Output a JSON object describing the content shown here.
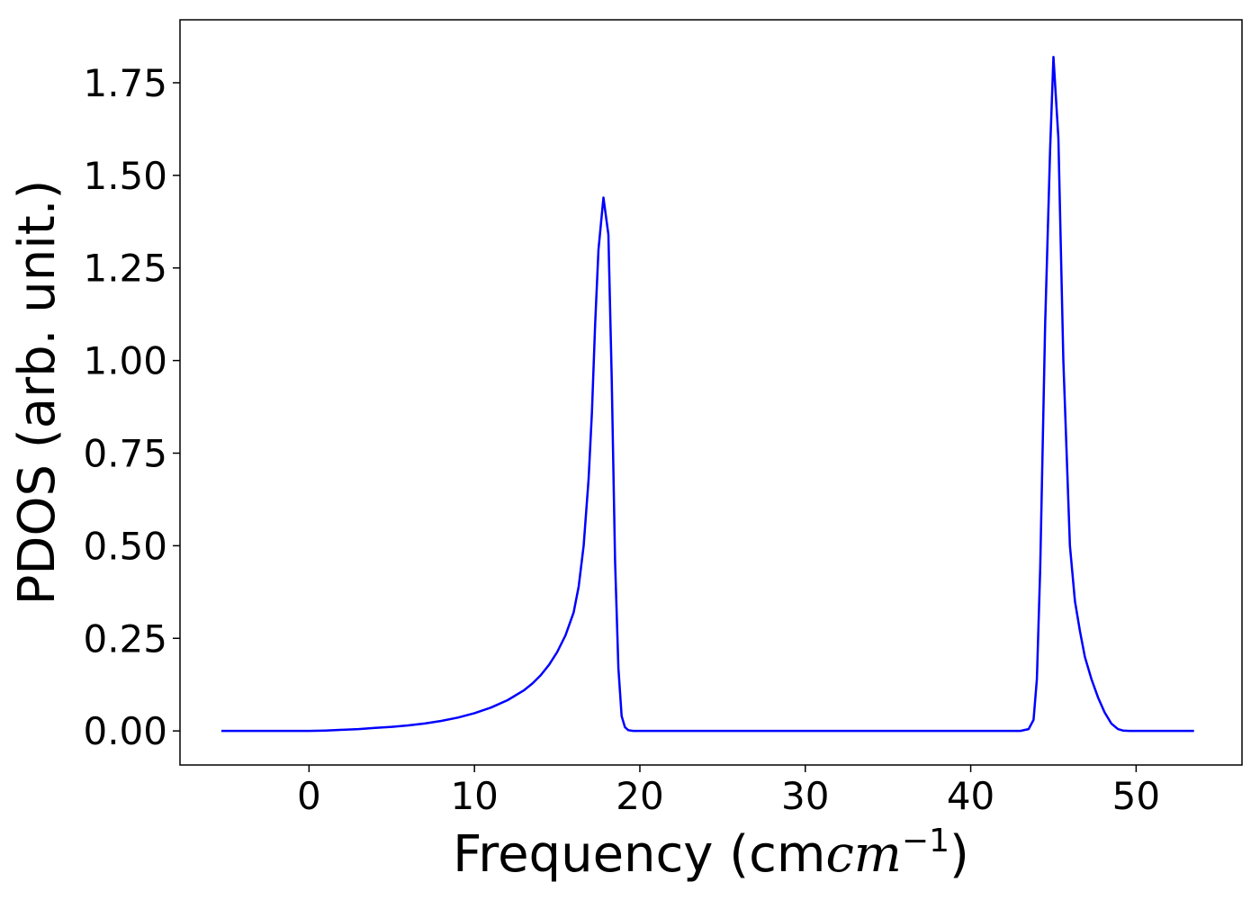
{
  "chart_data": {
    "type": "line",
    "xlabel": "Frequency (cm",
    "xlabel_math": "cm",
    "xlabel_exponent": "−1",
    "xlabel_close": ")",
    "ylabel": "PDOS (arb. unit.)",
    "xlim": [
      -7.8,
      56.4
    ],
    "ylim": [
      -0.092,
      1.92
    ],
    "xticks": [
      0,
      10,
      20,
      30,
      40,
      50
    ],
    "xtick_labels": [
      "0",
      "10",
      "20",
      "30",
      "40",
      "50"
    ],
    "yticks": [
      0,
      0.25,
      0.5,
      0.75,
      1.0,
      1.25,
      1.5,
      1.75
    ],
    "ytick_labels": [
      "0.00",
      "0.25",
      "0.50",
      "0.75",
      "1.00",
      "1.25",
      "1.50",
      "1.75"
    ],
    "grid": false,
    "colors": {
      "line": "#0000ff",
      "axes": "#000000"
    },
    "series": [
      {
        "x": [
          -5.3,
          -2,
          0,
          1,
          2,
          3,
          4,
          5,
          6,
          7,
          8,
          9,
          10,
          11,
          12,
          13,
          13.5,
          14,
          14.5,
          15,
          15.5,
          16,
          16.3,
          16.6,
          16.9,
          17.1,
          17.3,
          17.5,
          17.8,
          18.1,
          18.3,
          18.5,
          18.7,
          18.9,
          19.1,
          19.3,
          19.6,
          20,
          21,
          25,
          30,
          35,
          40,
          43,
          43.5,
          43.8,
          44.0,
          44.2,
          44.5,
          44.8,
          45.0,
          45.3,
          45.6,
          46.0,
          46.3,
          46.6,
          46.9,
          47.3,
          47.7,
          48.1,
          48.5,
          48.9,
          49.2,
          49.6,
          50,
          51,
          53.5
        ],
        "y": [
          0,
          0,
          0,
          0.001,
          0.003,
          0.005,
          0.008,
          0.011,
          0.015,
          0.02,
          0.027,
          0.036,
          0.048,
          0.063,
          0.083,
          0.11,
          0.128,
          0.15,
          0.178,
          0.213,
          0.258,
          0.32,
          0.39,
          0.5,
          0.68,
          0.86,
          1.1,
          1.3,
          1.44,
          1.34,
          0.95,
          0.46,
          0.17,
          0.04,
          0.01,
          0.002,
          0,
          0,
          0,
          0,
          0,
          0,
          0,
          0,
          0.005,
          0.03,
          0.14,
          0.44,
          1.1,
          1.57,
          1.82,
          1.6,
          1.0,
          0.5,
          0.35,
          0.27,
          0.2,
          0.14,
          0.09,
          0.05,
          0.02,
          0.005,
          0.001,
          0,
          0,
          0,
          0
        ]
      }
    ]
  }
}
